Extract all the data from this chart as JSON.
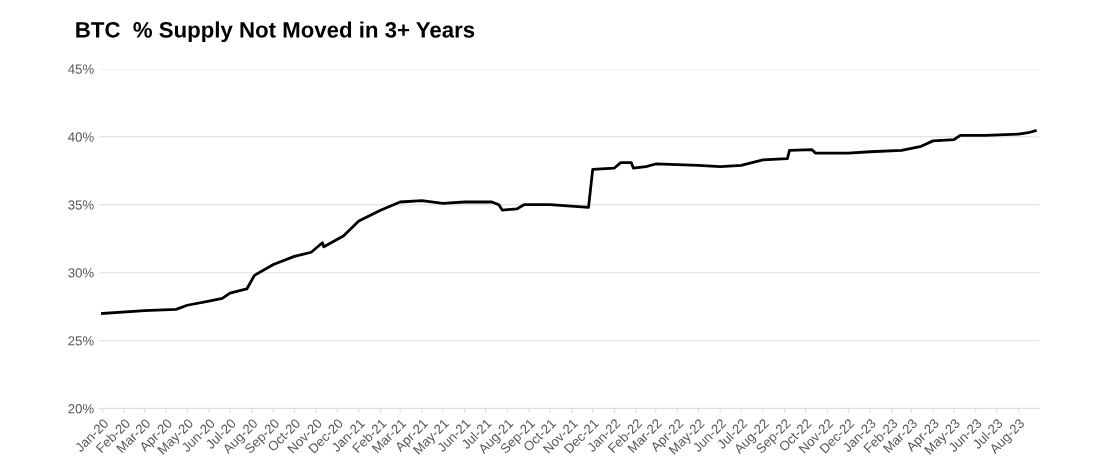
{
  "chart_data": {
    "type": "line",
    "title": "BTC  % Supply Not Moved in 3+ Years",
    "x": [
      "2020-01-01",
      "2020-03-01",
      "2020-04-15",
      "2020-05-01",
      "2020-06-01",
      "2020-06-20",
      "2020-07-01",
      "2020-07-25",
      "2020-08-05",
      "2020-09-01",
      "2020-10-01",
      "2020-10-25",
      "2020-11-10",
      "2020-11-12",
      "2020-12-10",
      "2021-01-01",
      "2021-02-01",
      "2021-03-01",
      "2021-04-01",
      "2021-05-01",
      "2021-06-01",
      "2021-07-10",
      "2021-07-20",
      "2021-07-25",
      "2021-08-15",
      "2021-08-25",
      "2021-10-01",
      "2021-11-25",
      "2021-12-01",
      "2022-01-01",
      "2022-01-10",
      "2022-01-25",
      "2022-01-28",
      "2022-02-15",
      "2022-03-01",
      "2022-05-01",
      "2022-06-01",
      "2022-07-01",
      "2022-08-01",
      "2022-09-05",
      "2022-09-08",
      "2022-10-10",
      "2022-10-15",
      "2022-12-01",
      "2023-01-01",
      "2023-02-15",
      "2023-03-15",
      "2023-04-01",
      "2023-05-01",
      "2023-05-10",
      "2023-06-15",
      "2023-08-01",
      "2023-08-15",
      "2023-08-25"
    ],
    "series": [
      {
        "color": "#000000",
        "values": [
          27.0,
          27.2,
          27.3,
          27.6,
          27.9,
          28.1,
          28.5,
          28.8,
          29.8,
          30.6,
          31.2,
          31.5,
          32.2,
          31.9,
          32.7,
          33.8,
          34.6,
          35.2,
          35.3,
          35.1,
          35.2,
          35.2,
          35.0,
          34.6,
          34.7,
          35.0,
          35.0,
          34.8,
          37.6,
          37.7,
          38.1,
          38.1,
          37.7,
          37.8,
          38.0,
          37.9,
          37.8,
          37.9,
          38.3,
          38.4,
          39.0,
          39.05,
          38.8,
          38.8,
          38.9,
          39.0,
          39.3,
          39.7,
          39.8,
          40.1,
          40.1,
          40.2,
          40.3,
          40.45
        ]
      }
    ],
    "xlim": [
      "2019-12-27",
      "2023-08-31"
    ],
    "xticks": [
      {
        "value": "2020-01",
        "label": "Jan-20"
      },
      {
        "value": "2020-02",
        "label": "Feb-20"
      },
      {
        "value": "2020-03",
        "label": "Mar-20"
      },
      {
        "value": "2020-04",
        "label": "Apr-20"
      },
      {
        "value": "2020-05",
        "label": "May-20"
      },
      {
        "value": "2020-06",
        "label": "Jun-20"
      },
      {
        "value": "2020-07",
        "label": "Jul-20"
      },
      {
        "value": "2020-08",
        "label": "Aug-20"
      },
      {
        "value": "2020-09",
        "label": "Sep-20"
      },
      {
        "value": "2020-10",
        "label": "Oct-20"
      },
      {
        "value": "2020-11",
        "label": "Nov-20"
      },
      {
        "value": "2020-12",
        "label": "Dec-20"
      },
      {
        "value": "2021-01",
        "label": "Jan-21"
      },
      {
        "value": "2021-02",
        "label": "Feb-21"
      },
      {
        "value": "2021-03",
        "label": "Mar-21"
      },
      {
        "value": "2021-04",
        "label": "Apr-21"
      },
      {
        "value": "2021-05",
        "label": "May-21"
      },
      {
        "value": "2021-06",
        "label": "Jun-21"
      },
      {
        "value": "2021-07",
        "label": "Jul-21"
      },
      {
        "value": "2021-08",
        "label": "Aug-21"
      },
      {
        "value": "2021-09",
        "label": "Sep-21"
      },
      {
        "value": "2021-10",
        "label": "Oct-21"
      },
      {
        "value": "2021-11",
        "label": "Nov-21"
      },
      {
        "value": "2021-12",
        "label": "Dec-21"
      },
      {
        "value": "2022-01",
        "label": "Jan-22"
      },
      {
        "value": "2022-02",
        "label": "Feb-22"
      },
      {
        "value": "2022-03",
        "label": "Mar-22"
      },
      {
        "value": "2022-04",
        "label": "Apr-22"
      },
      {
        "value": "2022-05",
        "label": "May-22"
      },
      {
        "value": "2022-06",
        "label": "Jun-22"
      },
      {
        "value": "2022-07",
        "label": "Jul-22"
      },
      {
        "value": "2022-08",
        "label": "Aug-22"
      },
      {
        "value": "2022-09",
        "label": "Sep-22"
      },
      {
        "value": "2022-10",
        "label": "Oct-22"
      },
      {
        "value": "2022-11",
        "label": "Nov-22"
      },
      {
        "value": "2022-12",
        "label": "Dec-22"
      },
      {
        "value": "2023-01",
        "label": "Jan-23"
      },
      {
        "value": "2023-02",
        "label": "Feb-23"
      },
      {
        "value": "2023-03",
        "label": "Mar-23"
      },
      {
        "value": "2023-04",
        "label": "Apr-23"
      },
      {
        "value": "2023-05",
        "label": "May-23"
      },
      {
        "value": "2023-06",
        "label": "Jun-23"
      },
      {
        "value": "2023-07",
        "label": "Jul-23"
      },
      {
        "value": "2023-08",
        "label": "Aug-23"
      }
    ],
    "ylim": [
      20,
      45
    ],
    "yticks": [
      {
        "value": 20,
        "label": "20%"
      },
      {
        "value": 25,
        "label": "25%"
      },
      {
        "value": 30,
        "label": "30%"
      },
      {
        "value": 35,
        "label": "35%"
      },
      {
        "value": 40,
        "label": "40%"
      },
      {
        "value": 45,
        "label": "45%"
      }
    ],
    "grid": "y",
    "line_style": "solid",
    "marker": "none"
  }
}
